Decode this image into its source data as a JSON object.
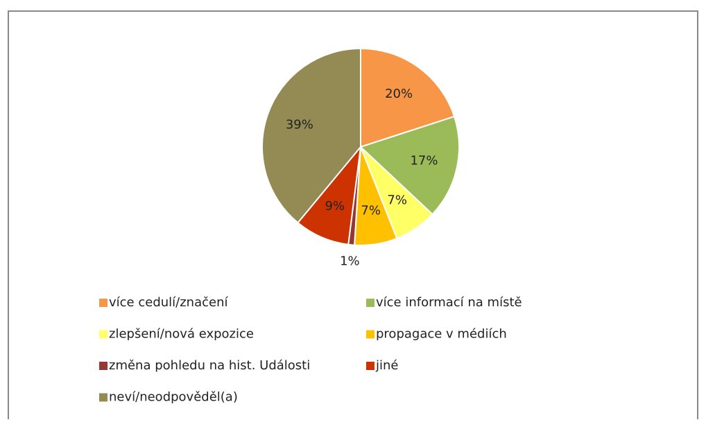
{
  "chart_data": {
    "type": "pie",
    "categories": [
      "více cedulí/značení",
      "více informací na místě",
      "zlepšení/nová expozice",
      "propagace v médiích",
      "změna pohledu na hist. Události",
      "jiné",
      "neví/neodpověděl(a)"
    ],
    "values": [
      20,
      17,
      7,
      7,
      1,
      9,
      39
    ],
    "value_labels": [
      "20%",
      "17%",
      "7%",
      "7%",
      "1%",
      "9%",
      "39%"
    ],
    "colors": [
      "#f79646",
      "#9bbb59",
      "#ffff66",
      "#ffc000",
      "#953735",
      "#cc3300",
      "#948a54"
    ],
    "legend": "bottom"
  }
}
